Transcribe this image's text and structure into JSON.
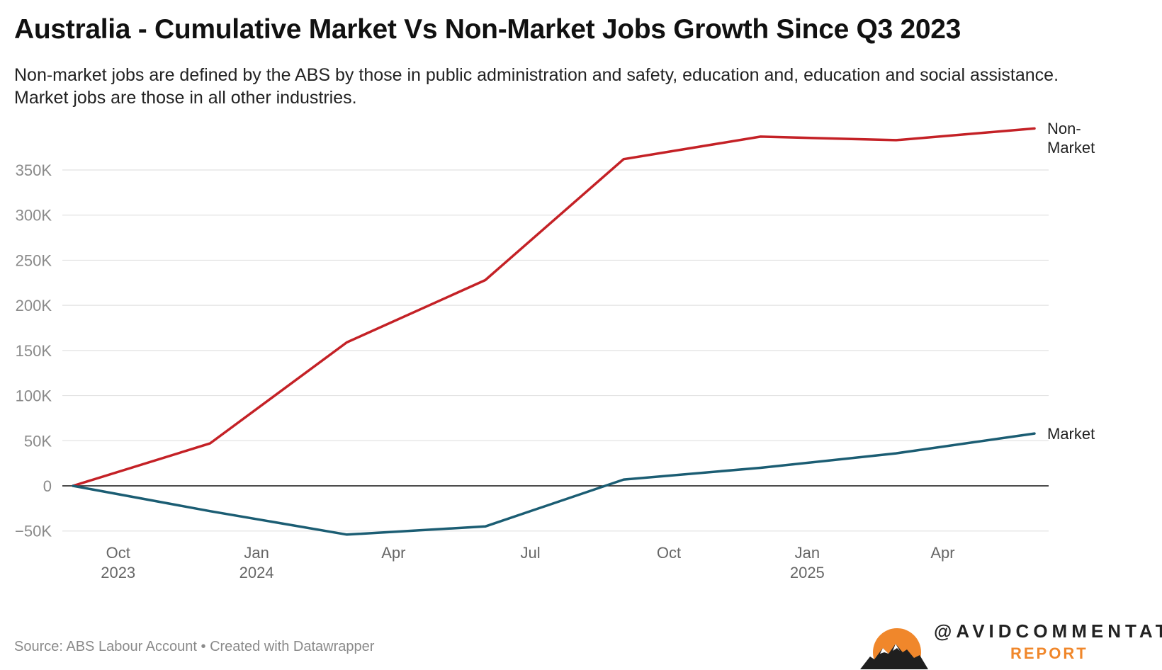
{
  "header": {
    "title": "Australia - Cumulative Market Vs Non-Market Jobs Growth Since Q3 2023",
    "subtitle": "Non-market jobs are defined by the ABS by those in public administration and safety, education and, education and social assistance. Market jobs are those in all other industries."
  },
  "chart_data": {
    "type": "line",
    "title": "Australia - Cumulative Market Vs Non-Market Jobs Growth Since Q3 2023",
    "ylim": [
      -50000,
      400000
    ],
    "yticks": [
      -50000,
      0,
      50000,
      100000,
      150000,
      200000,
      250000,
      300000,
      350000
    ],
    "ytick_labels": [
      "−50K",
      "0",
      "50K",
      "100K",
      "150K",
      "200K",
      "250K",
      "300K",
      "350K"
    ],
    "xlim": [
      "2023-08-01",
      "2025-06-01"
    ],
    "xticks": [
      {
        "date": "2023-10-01",
        "label": "Oct",
        "year": "2023"
      },
      {
        "date": "2024-01-01",
        "label": "Jan",
        "year": "2024"
      },
      {
        "date": "2024-04-01",
        "label": "Apr",
        "year": ""
      },
      {
        "date": "2024-07-01",
        "label": "Jul",
        "year": ""
      },
      {
        "date": "2024-10-01",
        "label": "Oct",
        "year": ""
      },
      {
        "date": "2025-01-01",
        "label": "Jan",
        "year": "2025"
      },
      {
        "date": "2025-04-01",
        "label": "Apr",
        "year": ""
      }
    ],
    "x": [
      "2023-09-01",
      "2023-12-01",
      "2024-03-01",
      "2024-06-01",
      "2024-09-01",
      "2024-12-01",
      "2025-03-01",
      "2025-06-01"
    ],
    "series": [
      {
        "name": "Non-Market",
        "label_lines": [
          "Non-",
          "Market"
        ],
        "color": "#c42126",
        "values": [
          0,
          47000,
          159000,
          228000,
          362000,
          387000,
          383000,
          396000
        ]
      },
      {
        "name": "Market",
        "label_lines": [
          "Market"
        ],
        "color": "#1b5d73",
        "values": [
          0,
          -28000,
          -54000,
          -45000,
          7000,
          20000,
          36000,
          58000
        ]
      }
    ],
    "grid": true,
    "legend": "direct labels at line ends (right)"
  },
  "footer": {
    "source": "Source: ABS Labour Account • Created with Datawrapper",
    "brand_handle": "@AVIDCOMMENTATOR",
    "brand_sub": "REPORT",
    "brand_color": "#f0872b"
  }
}
